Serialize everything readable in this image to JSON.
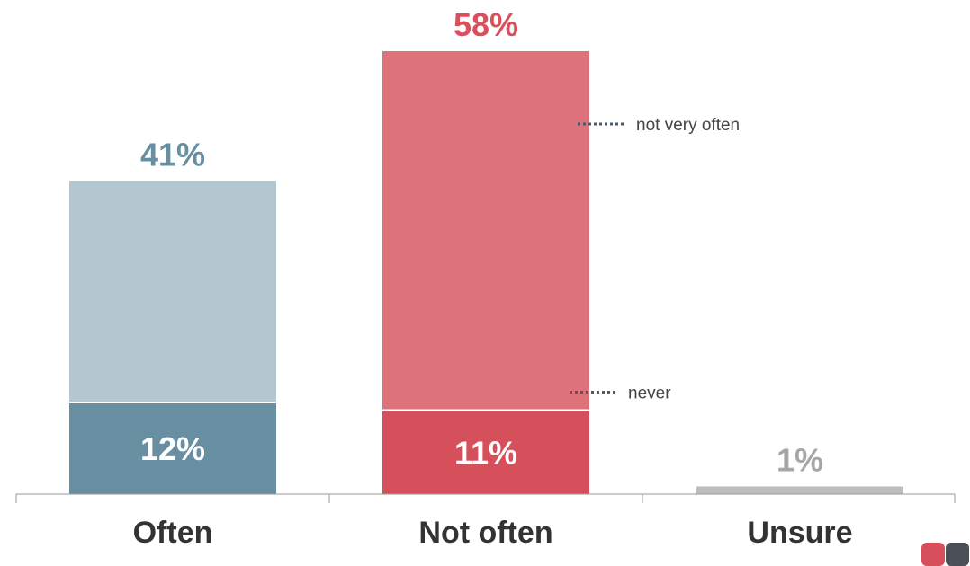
{
  "chart_data": {
    "type": "bar",
    "stacked": true,
    "categories": [
      "Often",
      "Not often",
      "Unsure"
    ],
    "totals": [
      "41%",
      "58%",
      "1%"
    ],
    "total_values": [
      41,
      58,
      1
    ],
    "segments": [
      {
        "category": "Often",
        "values": [
          12,
          29
        ],
        "labels": [
          "12%",
          ""
        ]
      },
      {
        "category": "Not often",
        "values": [
          11,
          47
        ],
        "labels": [
          "11%",
          ""
        ],
        "annotations": [
          "never",
          "not very often"
        ]
      },
      {
        "category": "Unsure",
        "values": [
          1
        ],
        "labels": []
      }
    ],
    "ylim": [
      0,
      60
    ],
    "grid": false,
    "legend": "none"
  },
  "colors": {
    "often_dark": "#688ea2",
    "often_light": "#b3c7cf",
    "not_often_dark": "#d6505c",
    "not_often_light": "#de727a",
    "unsure": "#bdbdbd",
    "often_total_text": "#688ea2",
    "not_often_total_text": "#d94f5c",
    "unsure_total_text": "#a6a6a6",
    "axis": "#999999",
    "annotation_dots": "#4a5a6a"
  }
}
